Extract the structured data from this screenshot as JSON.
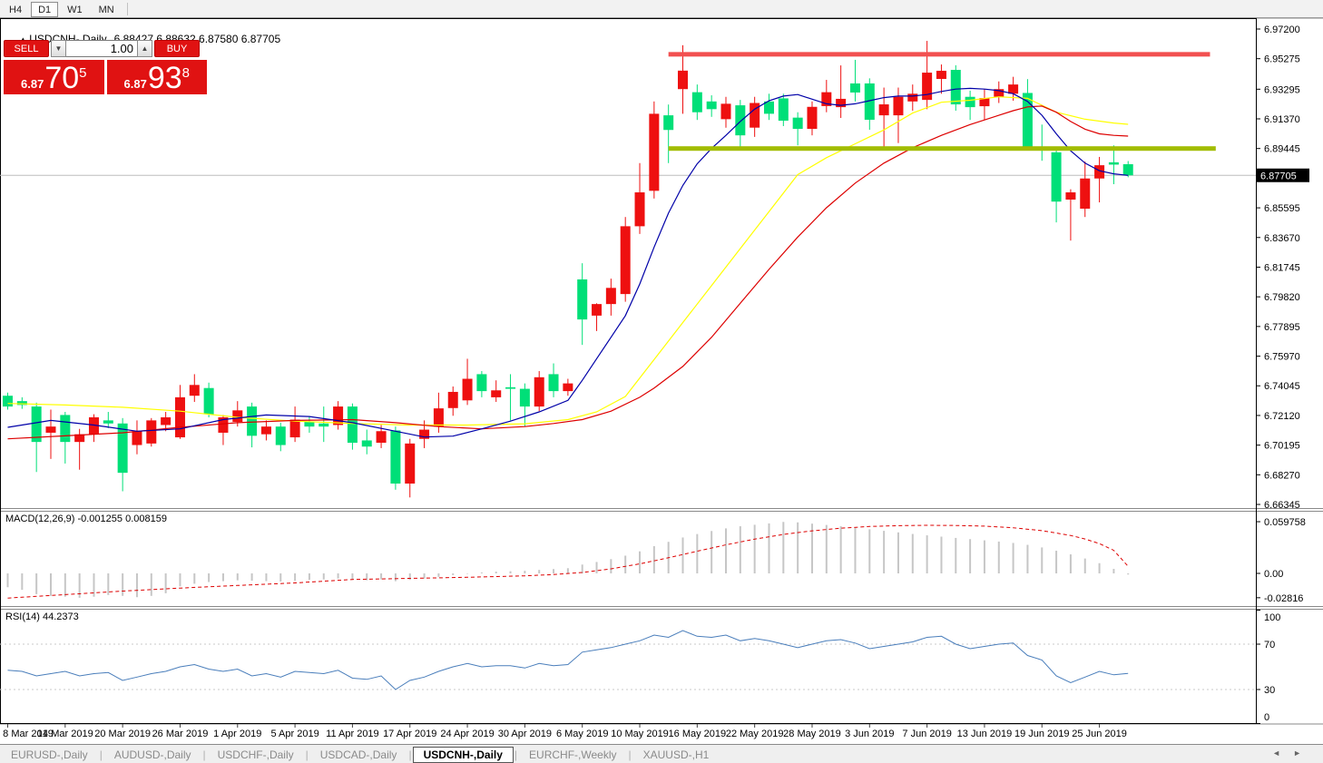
{
  "toolbar": {
    "timeframes": [
      {
        "label": "H4",
        "active": false
      },
      {
        "label": "D1",
        "active": true
      },
      {
        "label": "W1",
        "active": false
      },
      {
        "label": "MN",
        "active": false
      }
    ]
  },
  "chart_header": {
    "arrow": "▲",
    "symbol": "USDCNH-,Daily",
    "ohlc_text": "6.88427 6.88632 6.87580 6.87705"
  },
  "trade_panel": {
    "sell_label": "SELL",
    "buy_label": "BUY",
    "volume": "1.00",
    "down_arrow": "▼",
    "up_arrow": "▲",
    "sell_price_small": "6.87",
    "sell_price_big": "70",
    "sell_price_sup": "5",
    "buy_price_small": "6.87",
    "buy_price_big": "93",
    "buy_price_sup": "8"
  },
  "macd_panel_label": "MACD(12,26,9) -0.001255 0.008159",
  "rsi_panel_label": "RSI(14) 44.2373",
  "tabs": {
    "active_index": 4,
    "items": [
      "EURUSD-,Daily",
      "AUDUSD-,Daily",
      "USDCHF-,Daily",
      "USDCAD-,Daily",
      "USDCNH-,Daily",
      "EURCHF-,Weekly",
      "XAUUSD-,H1"
    ],
    "scroll_left": "◄",
    "scroll_right": "►"
  },
  "chart_data": {
    "type": "candlestick",
    "title": "USDCNH-,Daily",
    "note": "red candles are bullish, green candles are bearish (CN color convention)",
    "price_axis_ticks": [
      6.972,
      6.95275,
      6.93295,
      6.9137,
      6.89445,
      6.85595,
      6.8367,
      6.81745,
      6.7982,
      6.77895,
      6.7597,
      6.74045,
      6.7212,
      6.70195,
      6.6827,
      6.66345
    ],
    "current_price": 6.87705,
    "x_tick_labels": [
      "8 Mar 2019",
      "14 Mar 2019",
      "20 Mar 2019",
      "26 Mar 2019",
      "1 Apr 2019",
      "5 Apr 2019",
      "11 Apr 2019",
      "17 Apr 2019",
      "24 Apr 2019",
      "30 Apr 2019",
      "6 May 2019",
      "10 May 2019",
      "16 May 2019",
      "22 May 2019",
      "28 May 2019",
      "3 Jun 2019",
      "7 Jun 2019",
      "13 Jun 2019",
      "19 Jun 2019",
      "25 Jun 2019"
    ],
    "candles_per_tick": 4,
    "levels": {
      "resistance": {
        "price": 6.9556,
        "from_index": 46,
        "to_index": 83.7
      },
      "support": {
        "price": 6.89445,
        "from_index": 46,
        "to_index": 84.1
      }
    },
    "candles": [
      [
        6.734,
        6.736,
        6.725,
        6.727
      ],
      [
        6.7305,
        6.733,
        6.7255,
        6.728
      ],
      [
        6.727,
        6.7295,
        6.6845,
        6.704
      ],
      [
        6.71,
        6.725,
        6.693,
        6.714
      ],
      [
        6.7215,
        6.7235,
        6.69,
        6.704
      ],
      [
        6.704,
        6.7125,
        6.686,
        6.709
      ],
      [
        6.709,
        6.722,
        6.704,
        6.72
      ],
      [
        6.718,
        6.7235,
        6.713,
        6.716
      ],
      [
        6.716,
        6.7195,
        6.672,
        6.684
      ],
      [
        6.702,
        6.718,
        6.696,
        6.711
      ],
      [
        6.703,
        6.7195,
        6.701,
        6.718
      ],
      [
        6.715,
        6.7235,
        6.711,
        6.72
      ],
      [
        6.707,
        6.741,
        6.706,
        6.733
      ],
      [
        6.734,
        6.748,
        6.73,
        6.741
      ],
      [
        6.739,
        6.7425,
        6.72,
        6.722
      ],
      [
        6.71,
        6.7215,
        6.702,
        6.72
      ],
      [
        6.717,
        6.7305,
        6.714,
        6.7245
      ],
      [
        6.727,
        6.7295,
        6.7005,
        6.708
      ],
      [
        6.709,
        6.718,
        6.705,
        6.714
      ],
      [
        6.714,
        6.7165,
        6.698,
        6.702
      ],
      [
        6.707,
        6.727,
        6.704,
        6.7185
      ],
      [
        6.717,
        6.7205,
        6.71,
        6.714
      ],
      [
        6.716,
        6.727,
        6.704,
        6.714
      ],
      [
        6.715,
        6.7305,
        6.712,
        6.727
      ],
      [
        6.727,
        6.729,
        6.699,
        6.7035
      ],
      [
        6.705,
        6.712,
        6.696,
        6.701
      ],
      [
        6.7035,
        6.715,
        6.7,
        6.711
      ],
      [
        6.7115,
        6.714,
        6.673,
        6.677
      ],
      [
        6.677,
        6.706,
        6.668,
        6.703
      ],
      [
        6.706,
        6.718,
        6.7,
        6.712
      ],
      [
        6.714,
        6.736,
        6.71,
        6.7258
      ],
      [
        6.726,
        6.74,
        6.721,
        6.7365
      ],
      [
        6.731,
        6.758,
        6.728,
        6.745
      ],
      [
        6.748,
        6.75,
        6.733,
        6.737
      ],
      [
        6.733,
        6.744,
        6.73,
        6.7375
      ],
      [
        6.7395,
        6.748,
        6.718,
        6.7385
      ],
      [
        6.7385,
        6.742,
        6.714,
        6.727
      ],
      [
        6.727,
        6.75,
        6.724,
        6.746
      ],
      [
        6.748,
        6.755,
        6.733,
        6.737
      ],
      [
        6.737,
        6.745,
        6.734,
        6.742
      ],
      [
        6.8095,
        6.82,
        6.767,
        6.7835
      ],
      [
        6.786,
        6.794,
        6.776,
        6.7935
      ],
      [
        6.7935,
        6.81,
        6.786,
        6.804
      ],
      [
        6.8,
        6.85,
        6.795,
        6.844
      ],
      [
        6.844,
        6.885,
        6.839,
        6.866
      ],
      [
        6.867,
        6.925,
        6.862,
        6.917
      ],
      [
        6.916,
        6.923,
        6.885,
        6.9065
      ],
      [
        6.933,
        6.9615,
        6.917,
        6.945
      ],
      [
        6.931,
        6.936,
        6.913,
        6.918
      ],
      [
        6.925,
        6.929,
        6.915,
        6.92
      ],
      [
        6.9135,
        6.928,
        6.908,
        6.9235
      ],
      [
        6.9225,
        6.926,
        6.894,
        6.903
      ],
      [
        6.908,
        6.928,
        6.902,
        6.924
      ],
      [
        6.925,
        6.93,
        6.913,
        6.917
      ],
      [
        6.927,
        6.93,
        6.909,
        6.9125
      ],
      [
        6.9145,
        6.918,
        6.8965,
        6.9072
      ],
      [
        6.9072,
        6.925,
        6.903,
        6.9215
      ],
      [
        6.922,
        6.939,
        6.918,
        6.931
      ],
      [
        6.9213,
        6.9484,
        6.9143,
        6.9267
      ],
      [
        6.9367,
        6.952,
        6.925,
        6.9308
      ],
      [
        6.9367,
        6.94,
        6.9066,
        6.9131
      ],
      [
        6.916,
        6.934,
        6.894,
        6.9231
      ],
      [
        6.916,
        6.934,
        6.898,
        6.928
      ],
      [
        6.925,
        6.936,
        6.919,
        6.93
      ],
      [
        6.926,
        6.9643,
        6.92,
        6.9437
      ],
      [
        6.9396,
        6.949,
        6.93,
        6.9449
      ],
      [
        6.9455,
        6.9485,
        6.919,
        6.9231
      ],
      [
        6.928,
        6.932,
        6.913,
        6.9213
      ],
      [
        6.9219,
        6.933,
        6.913,
        6.9272
      ],
      [
        6.928,
        6.938,
        6.924,
        6.933
      ],
      [
        6.93,
        6.941,
        6.9255,
        6.936
      ],
      [
        6.9305,
        6.9395,
        6.894,
        6.895
      ],
      [
        6.8955,
        6.91,
        6.8865,
        6.894
      ],
      [
        6.892,
        6.894,
        6.8465,
        6.86
      ],
      [
        6.8613,
        6.868,
        6.8347,
        6.866
      ],
      [
        6.8554,
        6.886,
        6.85,
        6.875
      ],
      [
        6.875,
        6.889,
        6.8595,
        6.8836
      ],
      [
        6.8855,
        6.8965,
        6.8713,
        6.884
      ],
      [
        6.88427,
        6.88632,
        6.8758,
        6.87705
      ]
    ],
    "ma": {
      "fast_blue": [
        [
          0,
          6.7135
        ],
        [
          3,
          6.718
        ],
        [
          6,
          6.715
        ],
        [
          9,
          6.711
        ],
        [
          12,
          6.7125
        ],
        [
          15,
          6.7185
        ],
        [
          18,
          6.7215
        ],
        [
          21,
          6.7205
        ],
        [
          24,
          6.7165
        ],
        [
          27,
          6.711
        ],
        [
          29,
          6.7072
        ],
        [
          31,
          6.7078
        ],
        [
          33,
          6.7125
        ],
        [
          35,
          6.7175
        ],
        [
          37,
          6.7235
        ],
        [
          39,
          6.731
        ],
        [
          40,
          6.744
        ],
        [
          41,
          6.758
        ],
        [
          42,
          6.772
        ],
        [
          43,
          6.786
        ],
        [
          44,
          6.8065
        ],
        [
          45,
          6.8305
        ],
        [
          46,
          6.8525
        ],
        [
          47,
          6.8705
        ],
        [
          48,
          6.8845
        ],
        [
          49,
          6.8945
        ],
        [
          50,
          6.903
        ],
        [
          51,
          6.912
        ],
        [
          52,
          6.92
        ],
        [
          53,
          6.9255
        ],
        [
          54,
          6.9285
        ],
        [
          55,
          6.9295
        ],
        [
          56,
          6.9265
        ],
        [
          57,
          6.9235
        ],
        [
          58,
          6.9225
        ],
        [
          59,
          6.9235
        ],
        [
          60,
          6.9255
        ],
        [
          61,
          6.9275
        ],
        [
          62,
          6.9285
        ],
        [
          63,
          6.9285
        ],
        [
          64,
          6.9295
        ],
        [
          65,
          6.9315
        ],
        [
          66,
          6.933
        ],
        [
          67,
          6.9335
        ],
        [
          68,
          6.933
        ],
        [
          69,
          6.932
        ],
        [
          70,
          6.93
        ],
        [
          71,
          6.925
        ],
        [
          72,
          6.916
        ],
        [
          73,
          6.904
        ],
        [
          74,
          6.893
        ],
        [
          75,
          6.885
        ],
        [
          76,
          6.88
        ],
        [
          77,
          6.878
        ],
        [
          78,
          6.877
        ]
      ],
      "mid_red": [
        [
          0,
          6.706
        ],
        [
          4,
          6.708
        ],
        [
          8,
          6.71
        ],
        [
          12,
          6.7135
        ],
        [
          16,
          6.7165
        ],
        [
          20,
          6.718
        ],
        [
          24,
          6.7185
        ],
        [
          27,
          6.7165
        ],
        [
          30,
          6.714
        ],
        [
          33,
          6.7125
        ],
        [
          36,
          6.714
        ],
        [
          38,
          6.716
        ],
        [
          40,
          6.7185
        ],
        [
          42,
          6.724
        ],
        [
          44,
          6.733
        ],
        [
          45,
          6.739
        ],
        [
          47,
          6.753
        ],
        [
          49,
          6.772
        ],
        [
          51,
          6.794
        ],
        [
          53,
          6.816
        ],
        [
          55,
          6.837
        ],
        [
          57,
          6.856
        ],
        [
          59,
          6.872
        ],
        [
          61,
          6.885
        ],
        [
          63,
          6.895
        ],
        [
          65,
          6.903
        ],
        [
          67,
          6.91
        ],
        [
          69,
          6.916
        ],
        [
          70,
          6.919
        ],
        [
          71,
          6.9215
        ],
        [
          72,
          6.922
        ],
        [
          73,
          6.918
        ],
        [
          74,
          6.912
        ],
        [
          75,
          6.907
        ],
        [
          76,
          6.904
        ],
        [
          77,
          6.903
        ],
        [
          78,
          6.9025
        ]
      ],
      "slow_yellow": [
        [
          0,
          6.729
        ],
        [
          4,
          6.728
        ],
        [
          8,
          6.7265
        ],
        [
          12,
          6.724
        ],
        [
          16,
          6.72
        ],
        [
          20,
          6.7175
        ],
        [
          24,
          6.716
        ],
        [
          28,
          6.715
        ],
        [
          32,
          6.715
        ],
        [
          36,
          6.7158
        ],
        [
          39,
          6.7185
        ],
        [
          41,
          6.7235
        ],
        [
          43,
          6.7335
        ],
        [
          45,
          6.7575
        ],
        [
          47,
          6.7815
        ],
        [
          49,
          6.8055
        ],
        [
          51,
          6.8295
        ],
        [
          53,
          6.8535
        ],
        [
          55,
          6.8775
        ],
        [
          57,
          6.8885
        ],
        [
          59,
          6.8975
        ],
        [
          61,
          6.9065
        ],
        [
          63,
          6.9175
        ],
        [
          65,
          6.9245
        ],
        [
          67,
          6.9258
        ],
        [
          69,
          6.928
        ],
        [
          71,
          6.927
        ],
        [
          73,
          6.918
        ],
        [
          75,
          6.9135
        ],
        [
          77,
          6.911
        ],
        [
          78,
          6.9102
        ]
      ]
    },
    "macd": {
      "axis_labels": [
        "0.059758",
        "0.00",
        "-0.02816"
      ],
      "histogram": [
        -0.016,
        -0.019,
        -0.024,
        -0.026,
        -0.027,
        -0.0282,
        -0.027,
        -0.025,
        -0.026,
        -0.0275,
        -0.026,
        -0.023,
        -0.015,
        -0.012,
        -0.01,
        -0.009,
        -0.008,
        -0.0085,
        -0.009,
        -0.0095,
        -0.0085,
        -0.0075,
        -0.007,
        -0.006,
        -0.007,
        -0.008,
        -0.007,
        -0.009,
        -0.0075,
        -0.006,
        -0.004,
        -0.002,
        -0.0005,
        0.001,
        0.002,
        0.0025,
        0.003,
        0.004,
        0.005,
        0.006,
        0.0102,
        0.0132,
        0.0165,
        0.0205,
        0.0255,
        0.0315,
        0.0365,
        0.0415,
        0.0455,
        0.049,
        0.052,
        0.0545,
        0.0562,
        0.0578,
        0.0595,
        0.059,
        0.0575,
        0.056,
        0.0545,
        0.0528,
        0.051,
        0.0492,
        0.0474,
        0.0456,
        0.044,
        0.0425,
        0.041,
        0.0396,
        0.0382,
        0.0368,
        0.0352,
        0.033,
        0.03,
        0.0262,
        0.022,
        0.0172,
        0.0118,
        0.0052,
        -0.0013
      ],
      "signal": [
        [
          0,
          -0.0285
        ],
        [
          4,
          -0.0245
        ],
        [
          8,
          -0.0205
        ],
        [
          12,
          -0.017
        ],
        [
          16,
          -0.014
        ],
        [
          20,
          -0.011
        ],
        [
          24,
          -0.007
        ],
        [
          28,
          -0.0058
        ],
        [
          32,
          -0.0045
        ],
        [
          36,
          -0.0028
        ],
        [
          38,
          -0.0014
        ],
        [
          40,
          0.001
        ],
        [
          42,
          0.0052
        ],
        [
          44,
          0.011
        ],
        [
          46,
          0.018
        ],
        [
          48,
          0.0256
        ],
        [
          50,
          0.033
        ],
        [
          52,
          0.0396
        ],
        [
          54,
          0.045
        ],
        [
          56,
          0.0492
        ],
        [
          58,
          0.0522
        ],
        [
          60,
          0.0542
        ],
        [
          62,
          0.0552
        ],
        [
          64,
          0.0556
        ],
        [
          66,
          0.0554
        ],
        [
          68,
          0.0546
        ],
        [
          70,
          0.0528
        ],
        [
          72,
          0.0494
        ],
        [
          74,
          0.0438
        ],
        [
          75,
          0.0398
        ],
        [
          76,
          0.0344
        ],
        [
          77,
          0.0266
        ],
        [
          78,
          0.0082
        ]
      ]
    },
    "rsi": {
      "axis_labels": [
        100,
        70,
        30,
        0
      ],
      "overbought": 70,
      "oversold": 30,
      "values": [
        47,
        46,
        42,
        44,
        46,
        42,
        44,
        45,
        38,
        41,
        44,
        46,
        50,
        52,
        48,
        46,
        48,
        42,
        44,
        41,
        46,
        45,
        44,
        47,
        40,
        39,
        42,
        30,
        38,
        41,
        46,
        50,
        53,
        50,
        51,
        51,
        49,
        53,
        51,
        52,
        63,
        65,
        67,
        70,
        73,
        78,
        76,
        82,
        77,
        76,
        78,
        73,
        75,
        73,
        70,
        67,
        70,
        73,
        74,
        71,
        66,
        68,
        70,
        72,
        76,
        77,
        70,
        66,
        68,
        70,
        71,
        60,
        56,
        42,
        36,
        41,
        46,
        43,
        44.24
      ]
    },
    "colors": {
      "bull": "#ee1010",
      "bear": "#00df78",
      "ma_fast": "#0000a8",
      "ma_mid": "#dd0000",
      "ma_slow": "#ffff00",
      "resistance": "#f25050",
      "support": "#a2bc00",
      "macd_hist": "#c6c6c6",
      "macd_signal": "#dd0000",
      "rsi_line": "#4a7ebb",
      "current_line": "#bdbdbd",
      "panel_red": "#e01212"
    }
  }
}
